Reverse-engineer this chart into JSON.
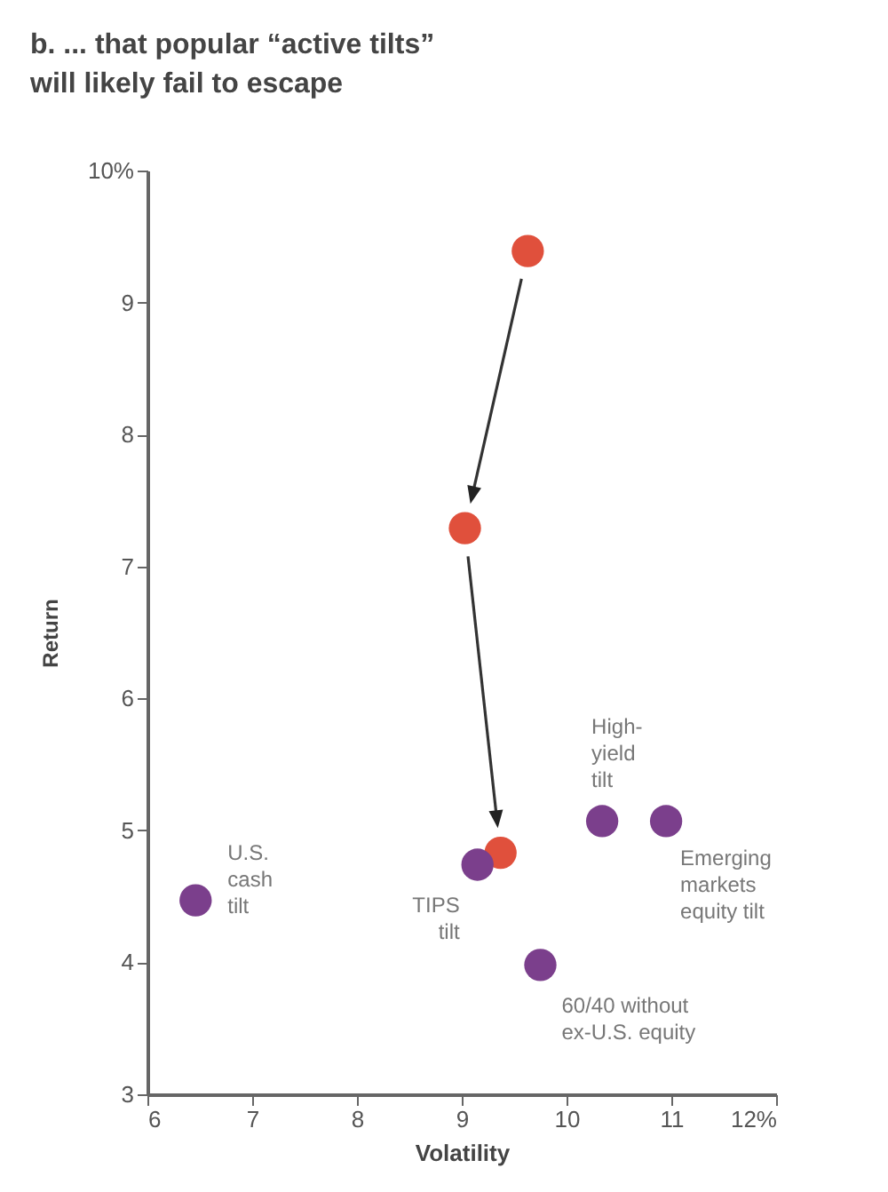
{
  "chart_data": {
    "type": "scatter",
    "title": [
      "b. ... that popular “active tilts”",
      "   will likely fail to escape"
    ],
    "xlabel": "Volatility",
    "ylabel": "Return",
    "xlim": [
      6,
      12
    ],
    "xticks": [
      6,
      7,
      8,
      9,
      10,
      11,
      {
        "value": 12,
        "label": "12%"
      }
    ],
    "ylim": [
      3,
      10
    ],
    "yticks": [
      3,
      4,
      5,
      6,
      7,
      8,
      9,
      {
        "value": 10,
        "label": "10%"
      }
    ],
    "grid": false,
    "marker": "circle",
    "series": [
      {
        "color": "#e0503c",
        "x": [
          9.63,
          9.03,
          9.37
        ],
        "values": [
          9.39,
          7.29,
          4.83
        ]
      },
      {
        "color": "#7b3f8c",
        "x": [
          6.46,
          9.15,
          9.75,
          10.34,
          10.95
        ],
        "values": [
          4.47,
          4.74,
          3.98,
          5.07,
          5.07
        ]
      }
    ],
    "annotations": [
      {
        "text": "U.S.\ncash\ntilt",
        "x": 6.46,
        "y": 4.47
      },
      {
        "text": "TIPS\ntilt",
        "x": 9.15,
        "y": 4.74
      },
      {
        "text": "60/40 without\nex-U.S. equity",
        "x": 9.75,
        "y": 3.98
      },
      {
        "text": "High-\nyield\ntilt",
        "x": 10.34,
        "y": 5.07
      },
      {
        "text": "Emerging\nmarkets\nequity tilt",
        "x": 10.95,
        "y": 5.07
      }
    ]
  }
}
